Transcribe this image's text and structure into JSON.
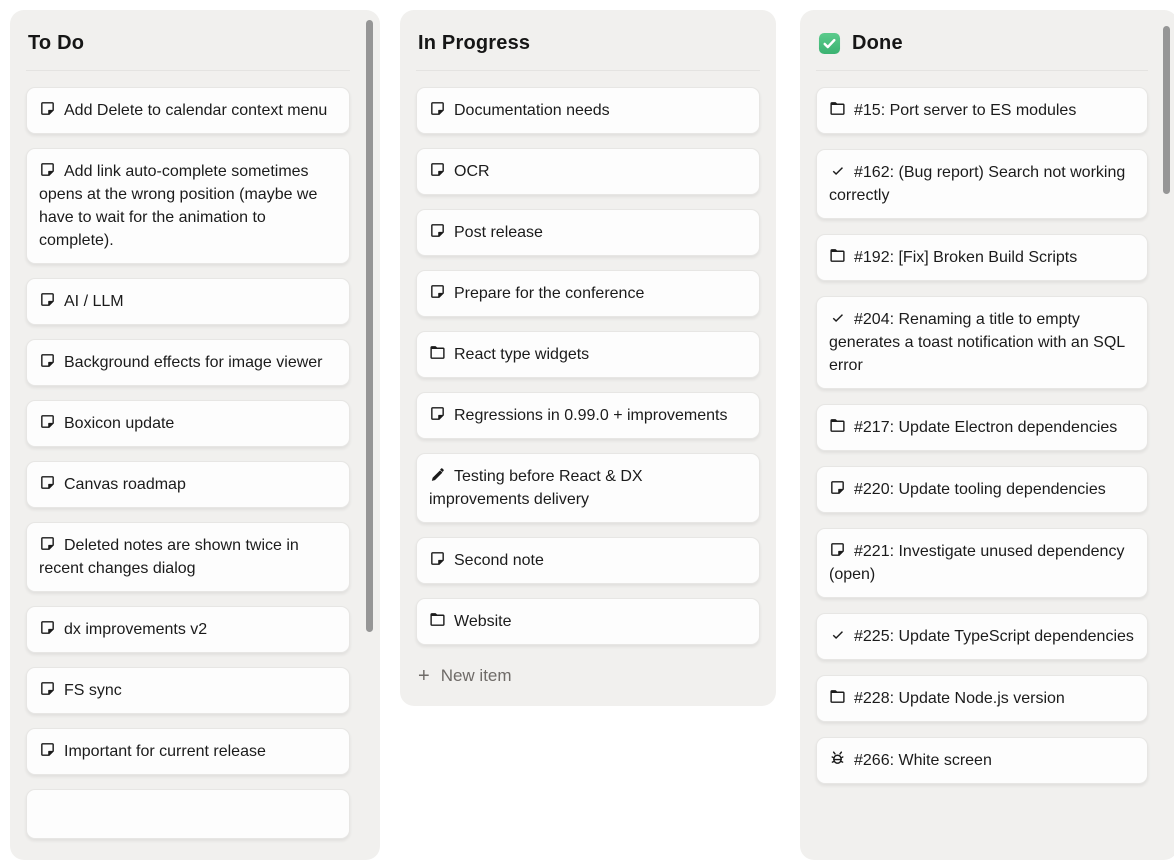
{
  "board": {
    "columns": [
      {
        "id": "todo",
        "title": "To Do",
        "scrollbar": true,
        "cards": [
          {
            "icon": "note",
            "text": "Add Delete to calendar context menu"
          },
          {
            "icon": "note",
            "text": "Add link auto-complete sometimes opens at the wrong position (maybe we have to wait for the animation to complete)."
          },
          {
            "icon": "note",
            "text": "AI / LLM"
          },
          {
            "icon": "note",
            "text": "Background effects for image viewer"
          },
          {
            "icon": "note",
            "text": "Boxicon update"
          },
          {
            "icon": "note",
            "text": "Canvas roadmap"
          },
          {
            "icon": "note",
            "text": "Deleted notes are shown twice in recent changes dialog"
          },
          {
            "icon": "note",
            "text": "dx improvements v2"
          },
          {
            "icon": "note",
            "text": "FS sync"
          },
          {
            "icon": "note",
            "text": "Important for current release"
          },
          {
            "icon": null,
            "text": "",
            "partial": true
          }
        ]
      },
      {
        "id": "in-progress",
        "title": "In Progress",
        "scrollbar": false,
        "cards": [
          {
            "icon": "note",
            "text": "Documentation needs"
          },
          {
            "icon": "note",
            "text": "OCR"
          },
          {
            "icon": "note",
            "text": "Post release"
          },
          {
            "icon": "note",
            "text": "Prepare for the conference"
          },
          {
            "icon": "folder",
            "text": "React type widgets"
          },
          {
            "icon": "note",
            "text": "Regressions in 0.99.0 + improvements"
          },
          {
            "icon": "pencil",
            "text": "Testing before React & DX improvements delivery"
          },
          {
            "icon": "note",
            "text": "Second note"
          },
          {
            "icon": "folder",
            "text": "Website"
          }
        ],
        "footer": {
          "plus": "+",
          "label": "New item"
        }
      },
      {
        "id": "done",
        "title": "Done",
        "title_icon": "checked-checkbox",
        "scrollbar": true,
        "cards": [
          {
            "icon": "folder",
            "text": "#15: Port server to ES modules"
          },
          {
            "icon": "check",
            "text": "#162: (Bug report) Search not working correctly"
          },
          {
            "icon": "folder",
            "text": "#192: [Fix] Broken Build Scripts"
          },
          {
            "icon": "check",
            "text": "#204: Renaming a title to empty generates a toast notification with an SQL error"
          },
          {
            "icon": "folder",
            "text": "#217: Update Electron dependencies"
          },
          {
            "icon": "note",
            "text": "#220: Update tooling dependencies"
          },
          {
            "icon": "note",
            "text": "#221: Investigate unused dependency (open)"
          },
          {
            "icon": "check",
            "text": "#225: Update TypeScript dependencies"
          },
          {
            "icon": "folder",
            "text": "#228: Update Node.js version"
          },
          {
            "icon": "bug",
            "text": "#266: White screen"
          }
        ]
      }
    ]
  },
  "colors": {
    "page_bg": "#ffffff",
    "column_bg": "#f1f0ee",
    "card_bg": "#fdfdfd",
    "card_border": "#e7e6e4",
    "text": "#1b1b1b",
    "muted_text": "#6f6b68",
    "divider": "#e4e3e1",
    "scrollbar_thumb": "#969696",
    "done_checkbox_green": "#42bd79"
  }
}
